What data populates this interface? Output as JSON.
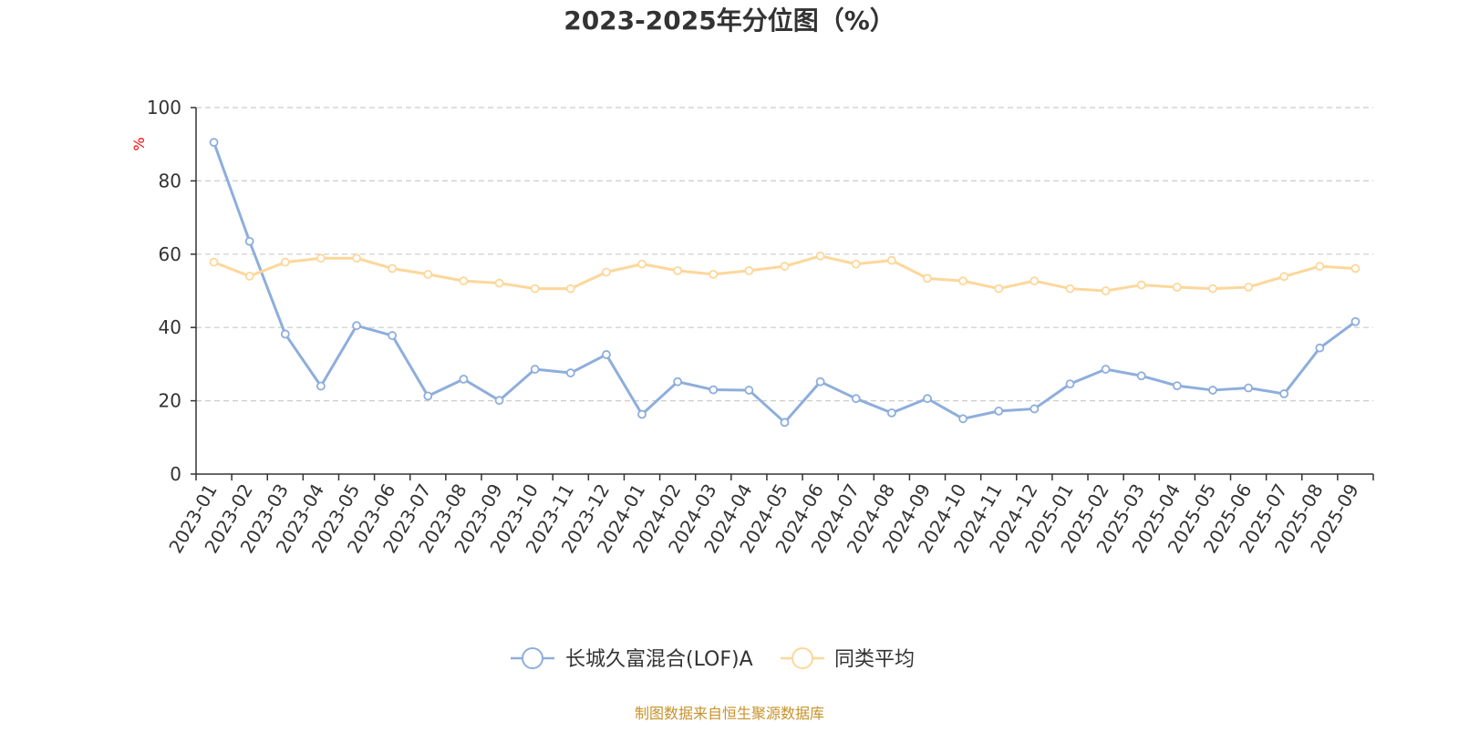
{
  "chart_data": {
    "type": "line",
    "title": "2023-2025年分位图（%）",
    "ylabel": "%",
    "ylim": [
      0,
      100
    ],
    "yticks": [
      0,
      20,
      40,
      60,
      80,
      100
    ],
    "grid": "horizontal dashed",
    "legend_position": "bottom-center",
    "x": [
      "2023-01",
      "2023-02",
      "2023-03",
      "2023-04",
      "2023-05",
      "2023-06",
      "2023-07",
      "2023-08",
      "2023-09",
      "2023-10",
      "2023-11",
      "2023-12",
      "2024-01",
      "2024-02",
      "2024-03",
      "2024-04",
      "2024-05",
      "2024-06",
      "2024-07",
      "2024-08",
      "2024-09",
      "2024-10",
      "2024-11",
      "2024-12",
      "2025-01",
      "2025-02",
      "2025-03",
      "2025-04",
      "2025-05",
      "2025-06",
      "2025-07",
      "2025-08",
      "2025-09"
    ],
    "series": [
      {
        "name": "长城久富混合(LOF)A",
        "color": "#8eaedc",
        "values": [
          90.5,
          63.5,
          38.2,
          24.0,
          40.5,
          37.8,
          21.3,
          25.9,
          20.1,
          28.6,
          27.6,
          32.6,
          16.3,
          25.2,
          23.0,
          22.9,
          14.1,
          25.2,
          20.6,
          16.7,
          20.6,
          15.1,
          17.2,
          17.8,
          24.6,
          28.6,
          26.8,
          24.1,
          22.9,
          23.5,
          21.9,
          34.4,
          41.6
        ]
      },
      {
        "name": "同类平均",
        "color": "#fdd79a",
        "values": [
          57.8,
          54.0,
          57.8,
          58.9,
          58.9,
          56.1,
          54.5,
          52.7,
          52.1,
          50.6,
          50.6,
          55.1,
          57.3,
          55.5,
          54.5,
          55.5,
          56.7,
          59.5,
          57.3,
          58.3,
          53.4,
          52.7,
          50.6,
          52.7,
          50.6,
          50.0,
          51.6,
          51.0,
          50.6,
          51.0,
          53.9,
          56.7,
          56.1
        ]
      }
    ],
    "source_note": "制图数据来自恒生聚源数据库",
    "colors": {
      "axis": "#333333",
      "grid": "#cccccc",
      "ylabel": "#ff0000",
      "source_note": "#c8922a"
    }
  }
}
